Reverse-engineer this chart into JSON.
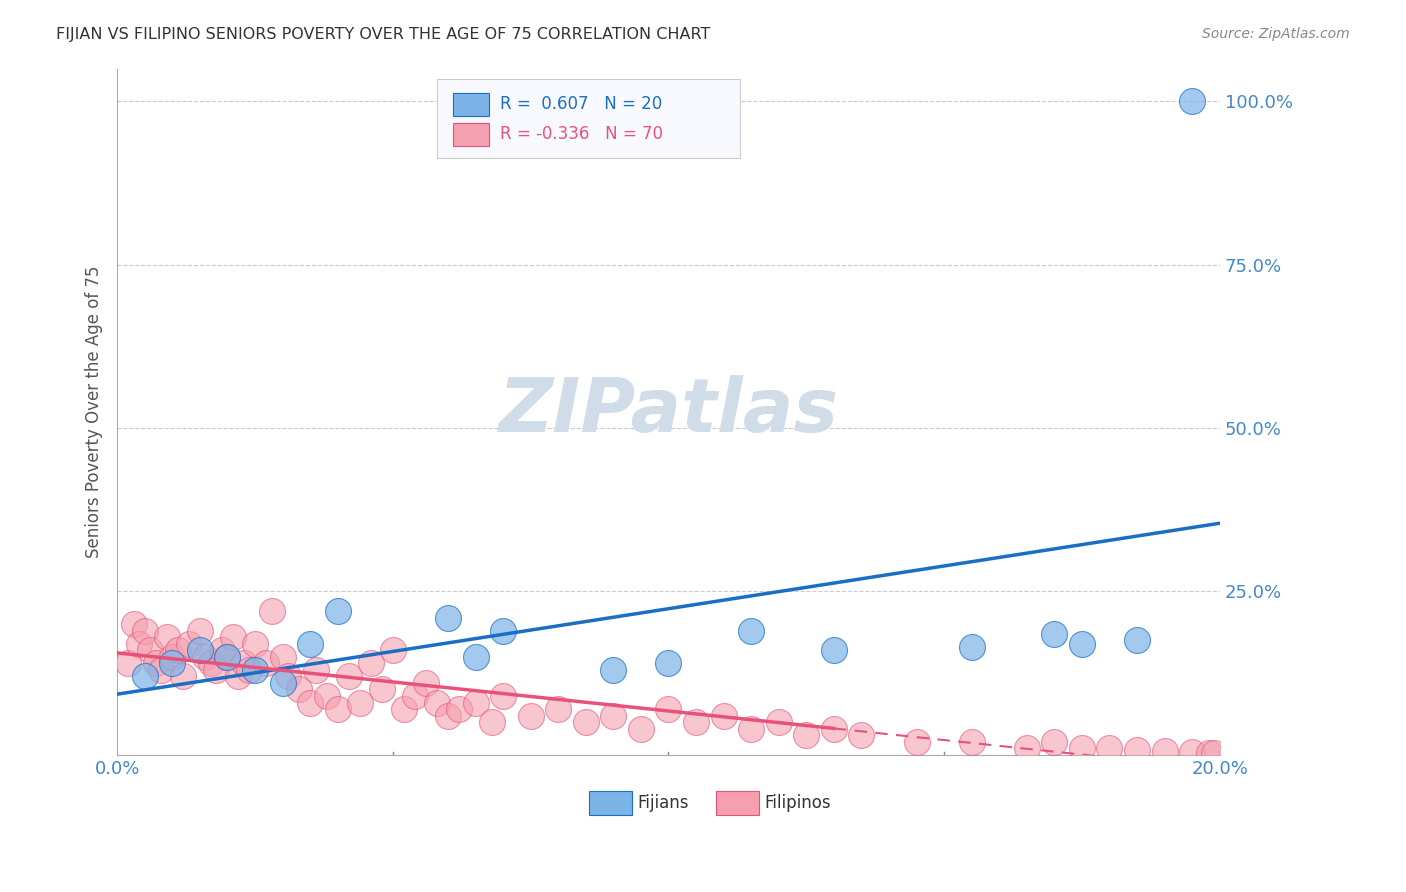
{
  "title": "FIJIAN VS FILIPINO SENIORS POVERTY OVER THE AGE OF 75 CORRELATION CHART",
  "source": "Source: ZipAtlas.com",
  "ylabel": "Seniors Poverty Over the Age of 75",
  "xlim": [
    0.0,
    0.2
  ],
  "ylim": [
    0.0,
    1.05
  ],
  "yticks": [
    0.0,
    0.25,
    0.5,
    0.75,
    1.0
  ],
  "ytick_labels": [
    "",
    "25.0%",
    "50.0%",
    "75.0%",
    "100.0%"
  ],
  "xticks": [
    0.0,
    0.05,
    0.1,
    0.15,
    0.2
  ],
  "xtick_labels": [
    "0.0%",
    "",
    "",
    "",
    "20.0%"
  ],
  "fijian_R": 0.607,
  "fijian_N": 20,
  "filipino_R": -0.336,
  "filipino_N": 70,
  "fijian_color": "#7cb4e8",
  "filipino_color": "#f4a0b0",
  "fijian_line_color": "#1a6fc4",
  "filipino_line_color": "#e8527a",
  "background_color": "#ffffff",
  "grid_color": "#c8c8d8",
  "title_color": "#333333",
  "axis_label_color": "#555555",
  "tick_label_color": "#4488cc",
  "watermark_color": "#d0dce8",
  "legend_box_color": "#f8f8ff",
  "fijian_points_x": [
    0.005,
    0.01,
    0.015,
    0.02,
    0.025,
    0.03,
    0.035,
    0.04,
    0.06,
    0.065,
    0.07,
    0.09,
    0.1,
    0.115,
    0.13,
    0.155,
    0.17,
    0.175,
    0.185,
    0.195
  ],
  "fijian_points_y": [
    0.12,
    0.14,
    0.16,
    0.15,
    0.13,
    0.11,
    0.17,
    0.22,
    0.21,
    0.15,
    0.19,
    0.13,
    0.14,
    0.19,
    0.16,
    0.165,
    0.185,
    0.17,
    0.175,
    1.0
  ],
  "filipino_points_x": [
    0.002,
    0.003,
    0.004,
    0.005,
    0.006,
    0.007,
    0.008,
    0.009,
    0.01,
    0.011,
    0.012,
    0.013,
    0.015,
    0.016,
    0.017,
    0.018,
    0.019,
    0.02,
    0.021,
    0.022,
    0.023,
    0.024,
    0.025,
    0.027,
    0.028,
    0.03,
    0.031,
    0.033,
    0.035,
    0.036,
    0.038,
    0.04,
    0.042,
    0.044,
    0.046,
    0.048,
    0.05,
    0.052,
    0.054,
    0.056,
    0.058,
    0.06,
    0.062,
    0.065,
    0.068,
    0.07,
    0.075,
    0.08,
    0.085,
    0.09,
    0.095,
    0.1,
    0.105,
    0.11,
    0.115,
    0.12,
    0.125,
    0.13,
    0.135,
    0.145,
    0.155,
    0.165,
    0.17,
    0.175,
    0.18,
    0.185,
    0.19,
    0.195,
    0.198,
    0.199
  ],
  "filipino_points_y": [
    0.14,
    0.2,
    0.17,
    0.19,
    0.16,
    0.14,
    0.13,
    0.18,
    0.15,
    0.16,
    0.12,
    0.17,
    0.19,
    0.15,
    0.14,
    0.13,
    0.16,
    0.15,
    0.18,
    0.12,
    0.14,
    0.13,
    0.17,
    0.14,
    0.22,
    0.15,
    0.12,
    0.1,
    0.08,
    0.13,
    0.09,
    0.07,
    0.12,
    0.08,
    0.14,
    0.1,
    0.16,
    0.07,
    0.09,
    0.11,
    0.08,
    0.06,
    0.07,
    0.08,
    0.05,
    0.09,
    0.06,
    0.07,
    0.05,
    0.06,
    0.04,
    0.07,
    0.05,
    0.06,
    0.04,
    0.05,
    0.03,
    0.04,
    0.03,
    0.02,
    0.02,
    0.01,
    0.02,
    0.01,
    0.01,
    0.008,
    0.006,
    0.004,
    0.003,
    0.002
  ]
}
